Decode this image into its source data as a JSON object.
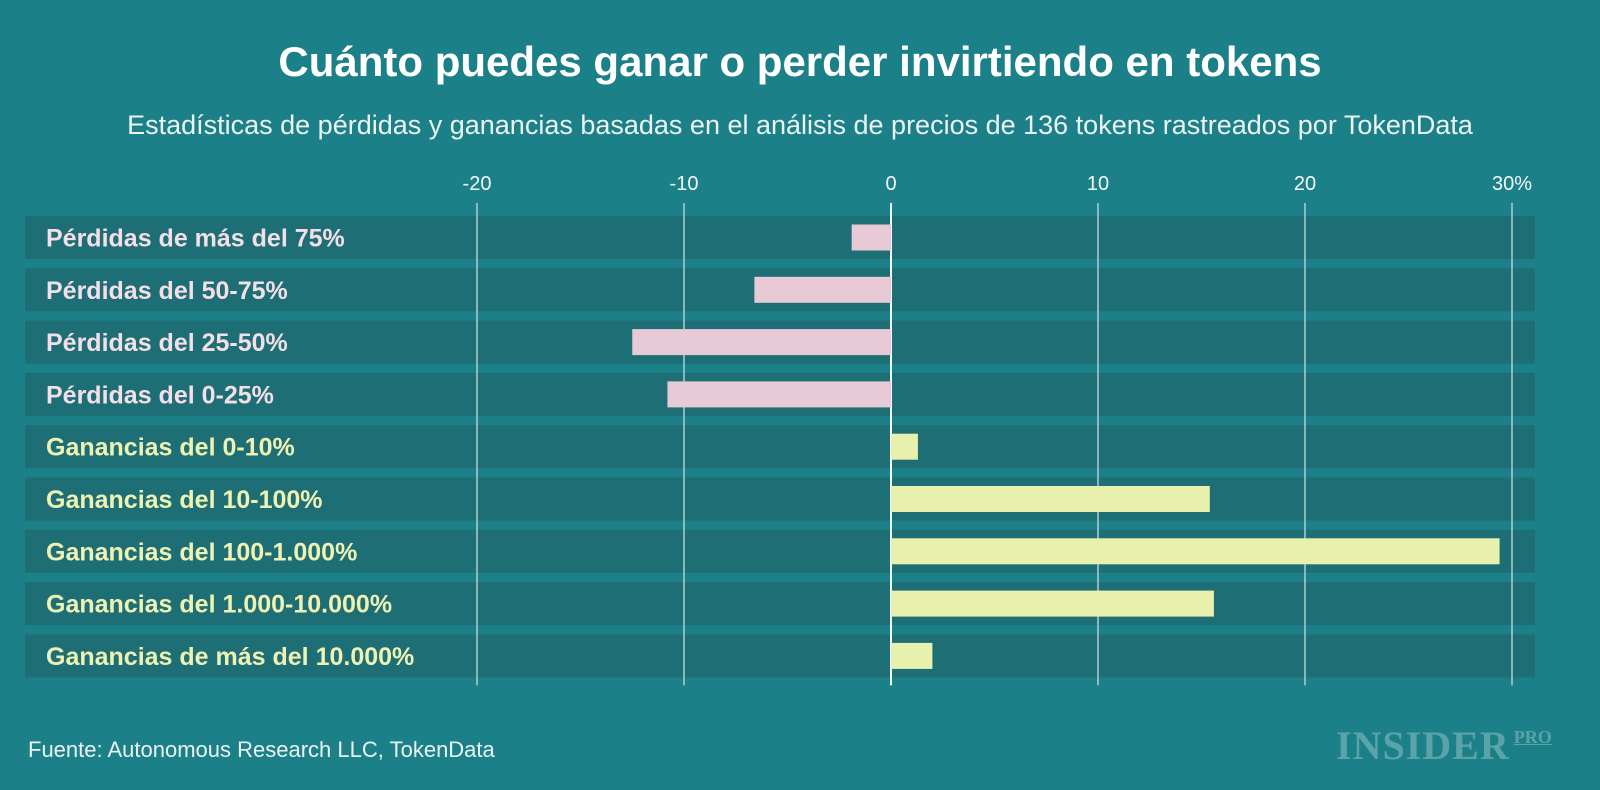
{
  "title": "Cuánto puedes ganar o perder invirtiendo en tokens",
  "subtitle": "Estadísticas de pérdidas y ganancias basadas en el análisis de precios de 136 tokens rastreados por TokenData",
  "source": "Fuente: Autonomous Research LLC, TokenData",
  "logo": {
    "main": "INSIDER",
    "suffix": "PRO"
  },
  "colors": {
    "background": "#1b8088",
    "row": "#1e6e75",
    "loss_bar": "#e8cad7",
    "gain_bar": "#e8f0ad",
    "loss_label": "#f3dfe8",
    "gain_label": "#eef3b4",
    "gridline": "#c7dfe1"
  },
  "chart_data": {
    "type": "bar",
    "orientation": "horizontal",
    "title": "Cuánto puedes ganar o perder invirtiendo en tokens",
    "xlabel": "",
    "ylabel": "",
    "xlim": [
      -20,
      30
    ],
    "ticks": [
      {
        "value": -20,
        "label": "-20"
      },
      {
        "value": -10,
        "label": "-10"
      },
      {
        "value": 0,
        "label": "0"
      },
      {
        "value": 10,
        "label": "10"
      },
      {
        "value": 20,
        "label": "20"
      },
      {
        "value": 30,
        "label": "30%"
      }
    ],
    "categories": [
      "Pérdidas de más del 75%",
      "Pérdidas del 50-75%",
      "Pérdidas del 25-50%",
      "Pérdidas del 0-25%",
      "Ganancias del 0-10%",
      "Ganancias del 10-100%",
      "Ganancias del 100-1.000%",
      "Ganancias del 1.000-10.000%",
      "Ganancias de más del 10.000%"
    ],
    "values": [
      -1.9,
      -6.6,
      -12.5,
      -10.8,
      1.3,
      15.4,
      29.4,
      15.6,
      2.0
    ],
    "groups": [
      "loss",
      "loss",
      "loss",
      "loss",
      "gain",
      "gain",
      "gain",
      "gain",
      "gain"
    ]
  }
}
